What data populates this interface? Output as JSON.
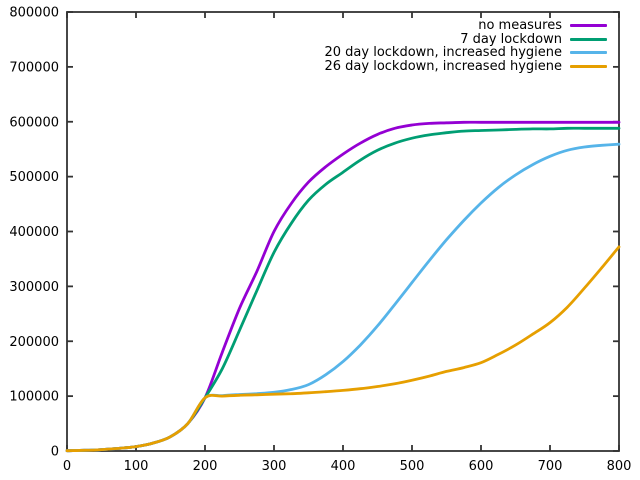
{
  "chart_data": {
    "type": "line",
    "title": "",
    "xlabel": "",
    "ylabel": "",
    "xlim": [
      0,
      800
    ],
    "ylim": [
      0,
      800000
    ],
    "x_ticks": [
      0,
      100,
      200,
      300,
      400,
      500,
      600,
      700,
      800
    ],
    "y_ticks": [
      0,
      100000,
      200000,
      300000,
      400000,
      500000,
      600000,
      700000,
      800000
    ],
    "grid": false,
    "legend_position": "top-right-inside",
    "background_color": "#ffffff",
    "axis_color": "#333333",
    "text_color": "#000000",
    "x": [
      0,
      25,
      50,
      75,
      100,
      125,
      150,
      175,
      200,
      225,
      250,
      275,
      300,
      325,
      350,
      375,
      400,
      425,
      450,
      475,
      500,
      525,
      550,
      575,
      600,
      625,
      650,
      675,
      700,
      725,
      750,
      775,
      800
    ],
    "series": [
      {
        "name": "no measures",
        "color": "#9400D3",
        "values": [
          600,
          1200,
          2500,
          4800,
          8000,
          14500,
          26000,
          50000,
          97000,
          180000,
          260000,
          327000,
          400000,
          451000,
          490000,
          518000,
          541000,
          561000,
          577000,
          588000,
          594000,
          597000,
          598000,
          599000,
          599000,
          599000,
          599000,
          599000,
          599000,
          599000,
          599000,
          599000,
          599000
        ]
      },
      {
        "name": "7 day lockdown",
        "color": "#009E73",
        "values": [
          600,
          1200,
          2500,
          4800,
          8000,
          14500,
          26000,
          50000,
          97000,
          150000,
          220000,
          292000,
          362000,
          415000,
          457000,
          486000,
          508000,
          530000,
          548000,
          561000,
          570000,
          576000,
          580000,
          583000,
          584000,
          585000,
          586000,
          587000,
          587000,
          588000,
          588000,
          588000,
          588000
        ]
      },
      {
        "name": "20 day lockdown, increased hygiene",
        "color": "#56B4E9",
        "values": [
          600,
          1200,
          2500,
          4800,
          8000,
          14500,
          26000,
          50000,
          97000,
          101000,
          103000,
          104500,
          107000,
          112000,
          121000,
          139000,
          163000,
          193000,
          228000,
          267000,
          307000,
          347000,
          385000,
          420000,
          452000,
          480000,
          503000,
          522000,
          537000,
          548000,
          554000,
          557000,
          559000
        ]
      },
      {
        "name": "26 day lockdown, increased hygiene",
        "color": "#E69F00",
        "values": [
          600,
          1200,
          2500,
          4800,
          8000,
          14500,
          26000,
          50000,
          97000,
          100000,
          101500,
          102500,
          103500,
          104500,
          106000,
          108000,
          110500,
          113500,
          117500,
          122500,
          129000,
          136500,
          145000,
          152000,
          161000,
          176000,
          193000,
          213000,
          234000,
          262000,
          297000,
          334000,
          372000
        ]
      }
    ]
  }
}
